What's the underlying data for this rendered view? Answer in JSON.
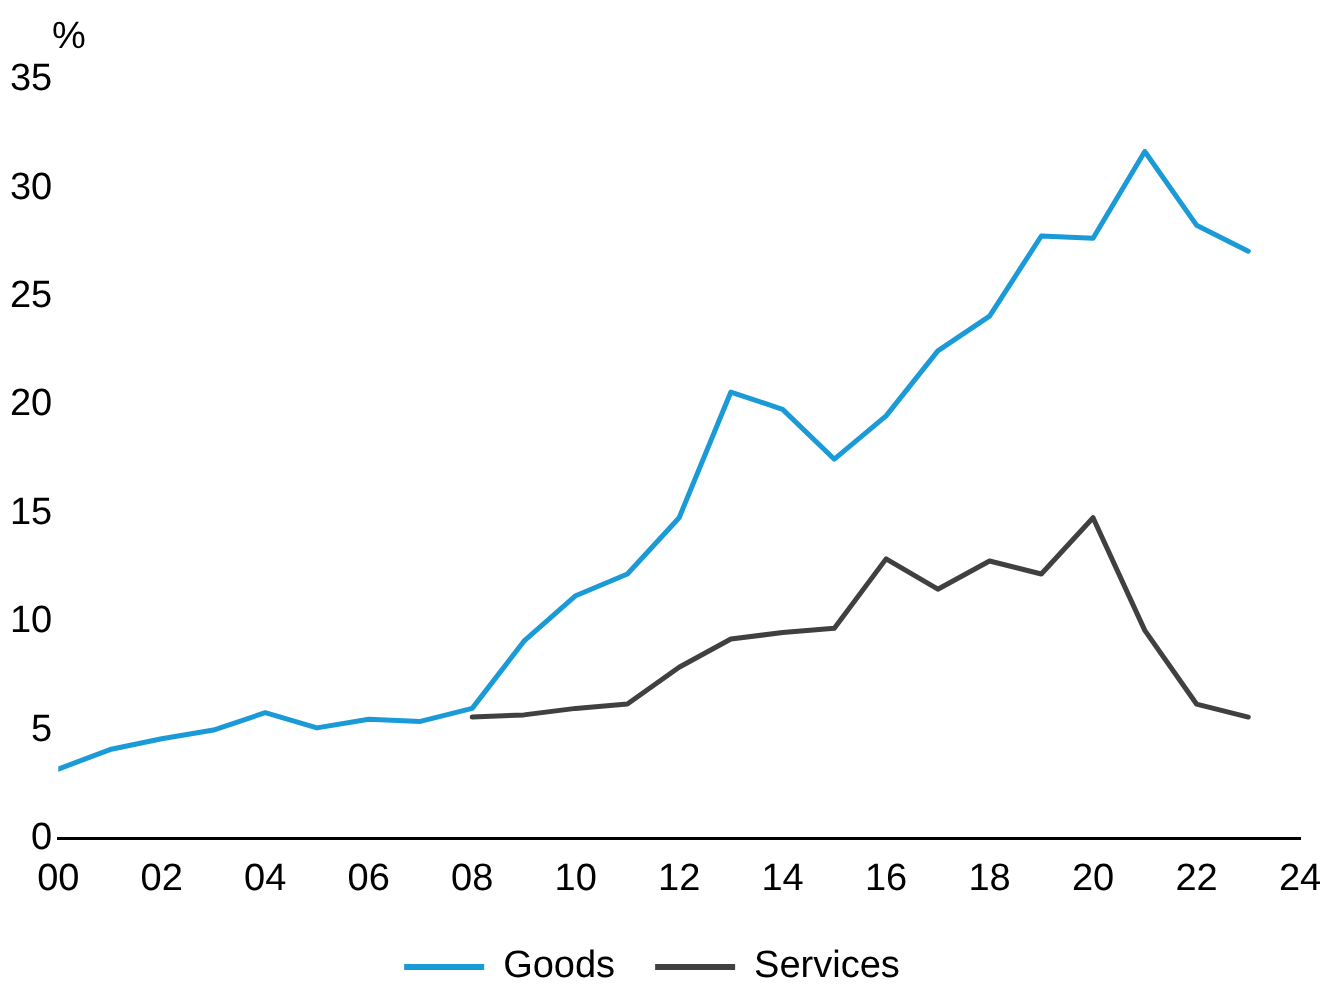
{
  "chart_data": {
    "type": "line",
    "ylabel": "%",
    "x": [
      0,
      1,
      2,
      3,
      4,
      5,
      6,
      7,
      8,
      9,
      10,
      11,
      12,
      13,
      14,
      15,
      16,
      17,
      18,
      19,
      20,
      21,
      22,
      23
    ],
    "series": [
      {
        "name": "Goods",
        "color": "#1a9ad6",
        "values": [
          3.2,
          4.1,
          4.6,
          5.0,
          5.8,
          5.1,
          5.5,
          5.4,
          6.0,
          9.1,
          11.2,
          12.2,
          14.8,
          20.6,
          19.8,
          17.5,
          19.5,
          22.5,
          24.1,
          27.8,
          27.7,
          31.7,
          28.3,
          27.1
        ]
      },
      {
        "name": "Services",
        "color": "#404040",
        "values": [
          null,
          null,
          null,
          null,
          null,
          null,
          null,
          null,
          5.6,
          5.7,
          6.0,
          6.2,
          7.9,
          9.2,
          9.5,
          9.7,
          12.9,
          11.5,
          12.8,
          12.2,
          14.8,
          9.6,
          6.2,
          5.6
        ]
      }
    ],
    "xlim": [
      0,
      24
    ],
    "xticks": [
      {
        "value": 0,
        "label": "00"
      },
      {
        "value": 2,
        "label": "02"
      },
      {
        "value": 4,
        "label": "04"
      },
      {
        "value": 6,
        "label": "06"
      },
      {
        "value": 8,
        "label": "08"
      },
      {
        "value": 10,
        "label": "10"
      },
      {
        "value": 12,
        "label": "12"
      },
      {
        "value": 14,
        "label": "14"
      },
      {
        "value": 16,
        "label": "16"
      },
      {
        "value": 18,
        "label": "18"
      },
      {
        "value": 20,
        "label": "20"
      },
      {
        "value": 22,
        "label": "22"
      },
      {
        "value": 24,
        "label": "24"
      }
    ],
    "ylim": [
      0,
      35
    ],
    "yticks": [
      0,
      5,
      10,
      15,
      20,
      25,
      30,
      35
    ],
    "grid": false,
    "legend": "bottom",
    "marker": "none",
    "line_style": "solid"
  }
}
